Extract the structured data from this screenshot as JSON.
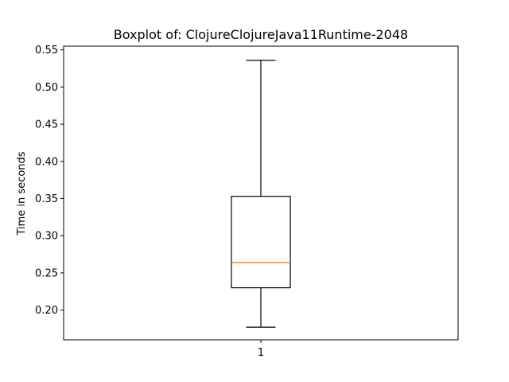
{
  "chart_data": {
    "type": "box",
    "title": "Boxplot of: ClojureClojureJava11Runtime-2048",
    "ylabel": "Time in seconds",
    "xlabel": "",
    "categories": [
      "1"
    ],
    "ylim": [
      0.16,
      0.555
    ],
    "yticks": [
      0.2,
      0.25,
      0.3,
      0.35,
      0.4,
      0.45,
      0.5,
      0.55
    ],
    "ytick_labels": [
      "0.20",
      "0.25",
      "0.30",
      "0.35",
      "0.40",
      "0.45",
      "0.50",
      "0.55"
    ],
    "grid": false,
    "series": [
      {
        "whisker_low": 0.177,
        "q1": 0.23,
        "median": 0.264,
        "q3": 0.353,
        "whisker_high": 0.536
      }
    ],
    "colors": {
      "box": "#000000",
      "median": "#ff7f0e"
    }
  }
}
